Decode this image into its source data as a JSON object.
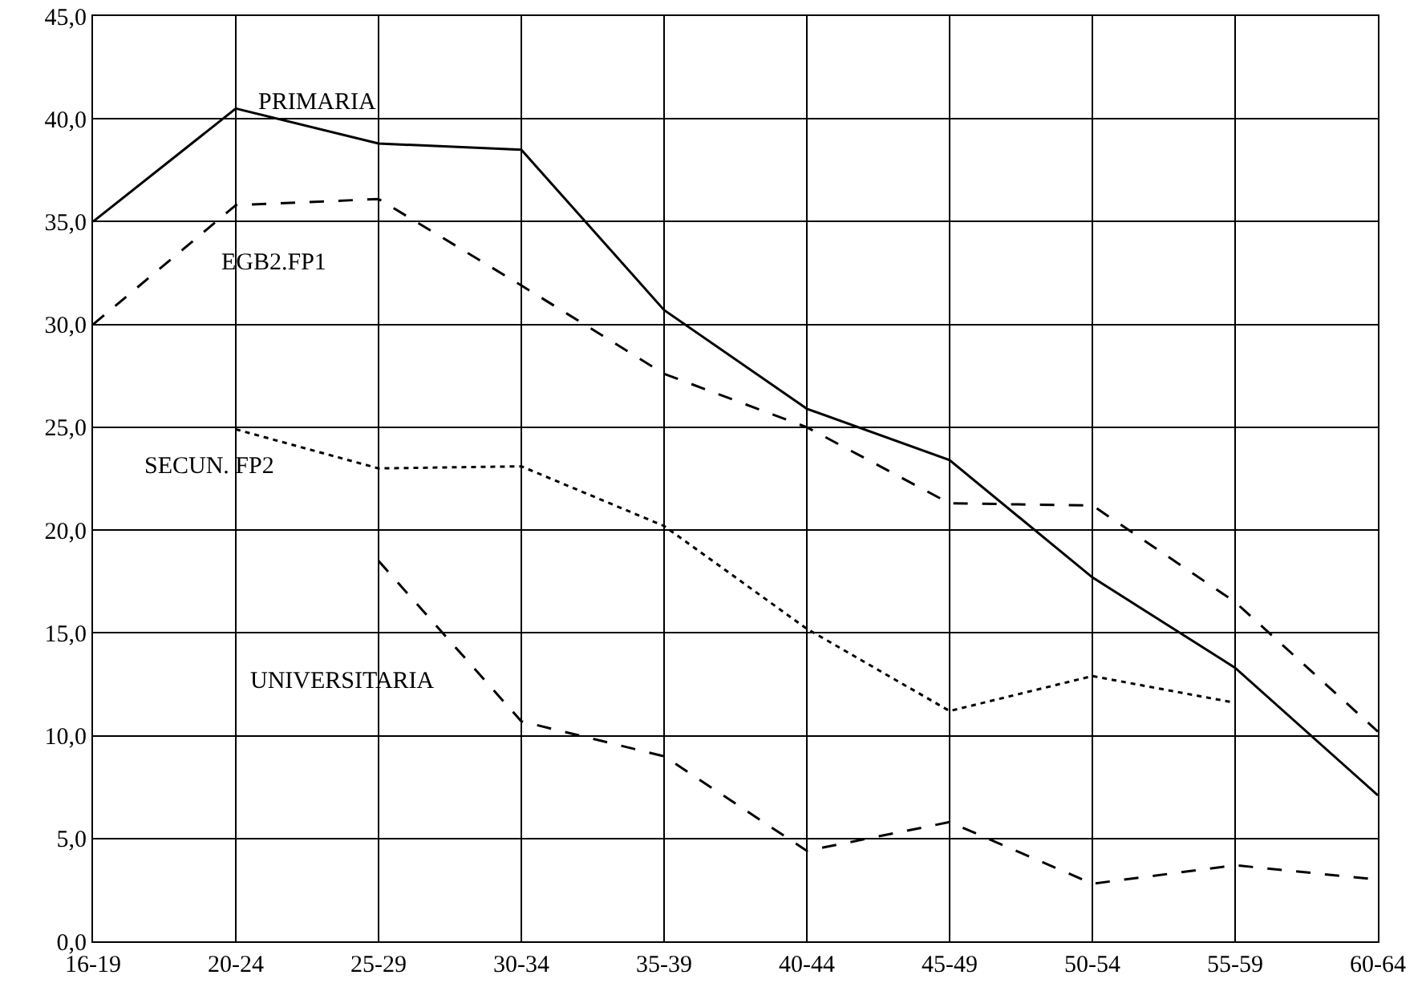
{
  "chart_data": {
    "type": "line",
    "categories": [
      "16-19",
      "20-24",
      "25-29",
      "30-34",
      "35-39",
      "40-44",
      "45-49",
      "50-54",
      "55-59",
      "60-64"
    ],
    "series": [
      {
        "color": "#000000",
        "line_style": "solid",
        "values": [
          35.0,
          40.5,
          38.8,
          38.5,
          30.7,
          25.9,
          23.4,
          17.7,
          13.3,
          7.1
        ]
      },
      {
        "color": "#000000",
        "line_style": "dashed",
        "values": [
          30.0,
          35.8,
          36.1,
          31.9,
          27.6,
          25.0,
          21.3,
          21.2,
          16.5,
          10.2
        ]
      },
      {
        "color": "#000000",
        "line_style": "dotted",
        "values": [
          null,
          24.9,
          23.0,
          23.1,
          20.2,
          15.2,
          11.2,
          12.9,
          11.6,
          null
        ]
      },
      {
        "color": "#000000",
        "line_style": "dashed",
        "values": [
          null,
          null,
          18.5,
          10.7,
          9.0,
          4.4,
          5.8,
          2.8,
          3.7,
          3.0
        ]
      }
    ],
    "annotations": [
      "PRIMARIA",
      "EGB2.FP1",
      "SECUN. FP2",
      "UNIVERSITARIA"
    ],
    "ylim": [
      0,
      45
    ],
    "yticks": [
      {
        "value": 0,
        "label": "0,0"
      },
      {
        "value": 5,
        "label": "5,0"
      },
      {
        "value": 10,
        "label": "10,0"
      },
      {
        "value": 15,
        "label": "15,0"
      },
      {
        "value": 20,
        "label": "20,0"
      },
      {
        "value": 25,
        "label": "25,0"
      },
      {
        "value": 30,
        "label": "30,0"
      },
      {
        "value": 35,
        "label": "35,0"
      },
      {
        "value": 40,
        "label": "40,0"
      },
      {
        "value": 45,
        "label": "45,0"
      }
    ],
    "grid": true,
    "marker": "none"
  }
}
